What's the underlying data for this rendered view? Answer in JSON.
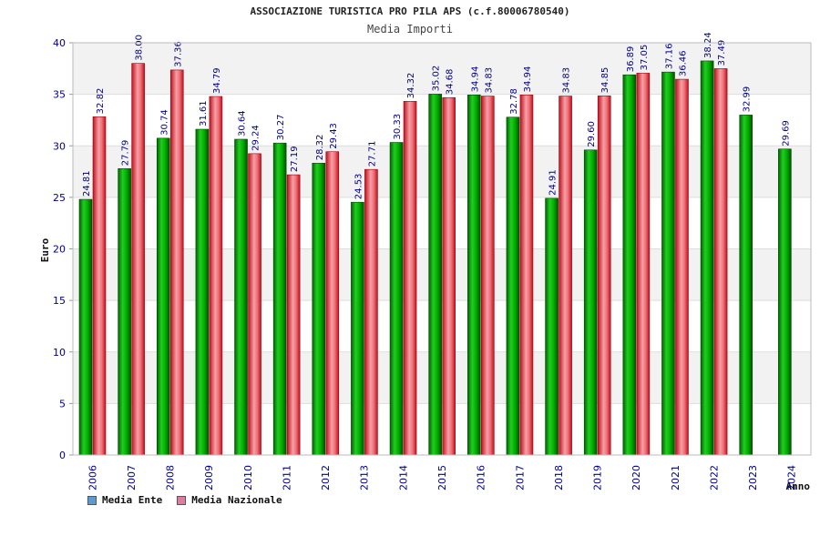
{
  "chart_data": {
    "type": "bar",
    "title": "ASSOCIAZIONE TURISTICA PRO PILA APS (c.f.80006780540)",
    "subtitle": "Media Importi",
    "ylabel": "Euro",
    "xlabel": "Anno",
    "ylim": [
      0,
      40
    ],
    "yticks": [
      "0",
      "5",
      "10",
      "15",
      "20",
      "25",
      "30",
      "35",
      "40"
    ],
    "grid": true,
    "legend_position": "bottom-left",
    "categories": [
      "2006",
      "2007",
      "2008",
      "2009",
      "2010",
      "2011",
      "2012",
      "2013",
      "2014",
      "2015",
      "2016",
      "2017",
      "2018",
      "2019",
      "2020",
      "2021",
      "2022",
      "2023",
      "2024"
    ],
    "series": [
      {
        "name": "Media Ente",
        "color": "#00aa00",
        "legend_color": "#5b9bd5",
        "values": [
          24.81,
          27.79,
          30.74,
          31.61,
          30.64,
          30.27,
          28.32,
          24.53,
          30.33,
          35.02,
          34.94,
          32.78,
          24.91,
          29.6,
          36.89,
          37.16,
          38.24,
          32.99,
          29.69
        ],
        "labels": [
          "24.81",
          "27.79",
          "30.74",
          "31.61",
          "30.64",
          "30.27",
          "28.32",
          "24.53",
          "30.33",
          "35.02",
          "34.94",
          "32.78",
          "24.91",
          "29.60",
          "36.89",
          "37.16",
          "38.24",
          "32.99",
          "29.69"
        ]
      },
      {
        "name": "Media Nazionale",
        "color": "#e8202a",
        "legend_color": "#e07aa0",
        "values": [
          32.82,
          38.0,
          37.36,
          34.79,
          29.24,
          27.19,
          29.43,
          27.71,
          34.32,
          34.68,
          34.83,
          34.94,
          34.83,
          34.85,
          37.05,
          36.46,
          37.49,
          null,
          null
        ],
        "labels": [
          "32.82",
          "38.00",
          "37.36",
          "34.79",
          "29.24",
          "27.19",
          "29.43",
          "27.71",
          "34.32",
          "34.68",
          "34.83",
          "34.94",
          "34.83",
          "34.85",
          "37.05",
          "36.46",
          "37.49",
          "",
          ""
        ]
      }
    ]
  }
}
